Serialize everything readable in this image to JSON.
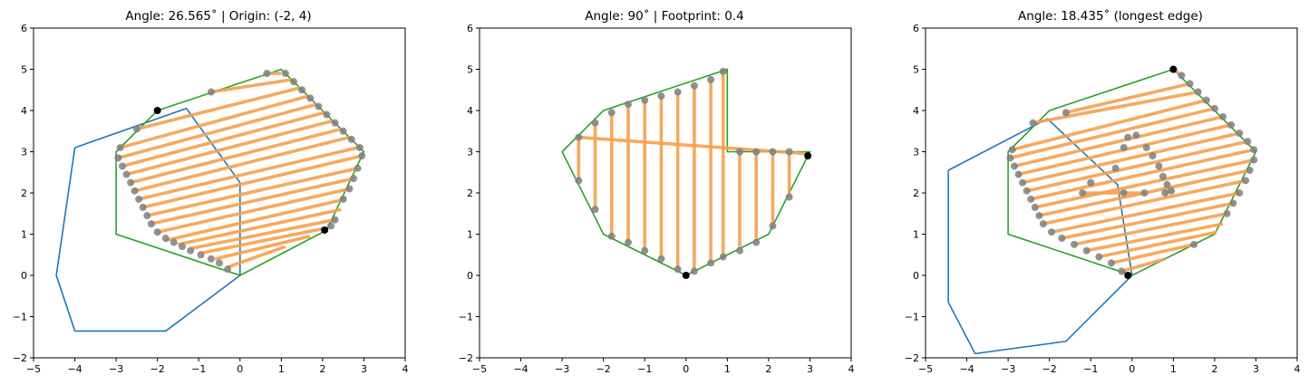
{
  "colors": {
    "polygon": "#1f77b4",
    "hull": "#2ca02c",
    "sweep": "#f5a04d",
    "waypoint": "#7f7f7f",
    "marker": "#000000"
  },
  "chart_data": [
    {
      "type": "line",
      "title": "Angle: 26.565$^\\circ$ | Origin: (-2, 4)",
      "title_text": "Angle: 26.565˚ | Origin: (-2, 4)",
      "xlim": [
        -5,
        4
      ],
      "ylim": [
        -2,
        6
      ],
      "xticks": [
        -5,
        -4,
        -3,
        -2,
        -1,
        0,
        1,
        2,
        3,
        4
      ],
      "yticks": [
        -2,
        -1,
        0,
        1,
        2,
        3,
        4,
        5,
        6
      ],
      "rotated_polygon": [
        [
          -4,
          3.1
        ],
        [
          -1.3,
          4.05
        ],
        [
          0,
          2.25
        ],
        [
          0,
          0
        ],
        [
          -1.8,
          -1.35
        ],
        [
          -4,
          -1.35
        ],
        [
          -4.45,
          0
        ],
        [
          -4,
          3.1
        ]
      ],
      "hull": [
        [
          -2,
          4
        ],
        [
          1,
          5
        ],
        [
          3,
          3
        ],
        [
          2.1,
          1.1
        ],
        [
          0,
          0
        ],
        [
          -3,
          1
        ],
        [
          -3,
          3
        ],
        [
          -2,
          4
        ]
      ],
      "sweep_lines": [
        [
          [
            0.65,
            4.9
          ],
          [
            1.0,
            4.9
          ]
        ],
        [
          [
            -0.7,
            4.45
          ],
          [
            1.25,
            4.75
          ]
        ],
        [
          [
            -2.5,
            3.55
          ],
          [
            1.45,
            4.55
          ]
        ],
        [
          [
            -2.9,
            3.1
          ],
          [
            1.65,
            4.35
          ]
        ],
        [
          [
            -2.95,
            2.85
          ],
          [
            1.85,
            4.15
          ]
        ],
        [
          [
            -2.85,
            2.65
          ],
          [
            2.05,
            3.95
          ]
        ],
        [
          [
            -2.75,
            2.45
          ],
          [
            2.25,
            3.75
          ]
        ],
        [
          [
            -2.65,
            2.25
          ],
          [
            2.45,
            3.55
          ]
        ],
        [
          [
            -2.55,
            2.05
          ],
          [
            2.65,
            3.35
          ]
        ],
        [
          [
            -2.45,
            1.85
          ],
          [
            2.85,
            3.1
          ]
        ],
        [
          [
            -2.35,
            1.65
          ],
          [
            2.95,
            2.9
          ]
        ],
        [
          [
            -2.25,
            1.45
          ],
          [
            2.85,
            2.6
          ]
        ],
        [
          [
            -2.15,
            1.25
          ],
          [
            2.75,
            2.35
          ]
        ],
        [
          [
            -2.0,
            1.05
          ],
          [
            2.65,
            2.1
          ]
        ],
        [
          [
            -1.8,
            0.85
          ],
          [
            2.55,
            1.85
          ]
        ],
        [
          [
            -1.5,
            0.75
          ],
          [
            2.45,
            1.6
          ]
        ],
        [
          [
            -1.2,
            0.65
          ],
          [
            2.3,
            1.35
          ]
        ],
        [
          [
            -0.9,
            0.55
          ],
          [
            2.1,
            1.15
          ]
        ],
        [
          [
            -0.6,
            0.4
          ],
          [
            1.7,
            0.95
          ]
        ],
        [
          [
            -0.3,
            0.2
          ],
          [
            1.1,
            0.7
          ]
        ]
      ],
      "waypoints": [
        [
          0.65,
          4.9
        ],
        [
          1.1,
          4.9
        ],
        [
          1.3,
          4.7
        ],
        [
          1.5,
          4.5
        ],
        [
          1.7,
          4.3
        ],
        [
          1.9,
          4.1
        ],
        [
          2.1,
          3.9
        ],
        [
          2.3,
          3.7
        ],
        [
          2.5,
          3.5
        ],
        [
          2.7,
          3.3
        ],
        [
          2.9,
          3.1
        ],
        [
          2.95,
          2.9
        ],
        [
          2.85,
          2.6
        ],
        [
          2.75,
          2.35
        ],
        [
          2.65,
          2.1
        ],
        [
          2.5,
          1.85
        ],
        [
          2.3,
          1.35
        ],
        [
          2.2,
          1.2
        ],
        [
          -0.7,
          4.45
        ],
        [
          -2.5,
          3.55
        ],
        [
          -2.9,
          3.1
        ],
        [
          -2.95,
          2.85
        ],
        [
          -2.85,
          2.65
        ],
        [
          -2.75,
          2.45
        ],
        [
          -2.65,
          2.25
        ],
        [
          -2.55,
          2.05
        ],
        [
          -2.45,
          1.85
        ],
        [
          -2.35,
          1.65
        ],
        [
          -2.25,
          1.45
        ],
        [
          -2.15,
          1.25
        ],
        [
          -2.0,
          1.05
        ],
        [
          -1.8,
          0.9
        ],
        [
          -1.6,
          0.8
        ],
        [
          -1.4,
          0.7
        ],
        [
          -1.2,
          0.6
        ],
        [
          -0.95,
          0.5
        ],
        [
          -0.7,
          0.4
        ],
        [
          -0.5,
          0.3
        ],
        [
          -0.3,
          0.15
        ]
      ],
      "markers": [
        [
          -2,
          4
        ],
        [
          2.05,
          1.1
        ]
      ]
    },
    {
      "type": "line",
      "title": "Angle: 90$^\\circ$ | Footprint: 0.4",
      "title_text": "Angle: 90˚ | Footprint: 0.4",
      "xlim": [
        -5,
        4
      ],
      "ylim": [
        -2,
        6
      ],
      "xticks": [
        -5,
        -4,
        -3,
        -2,
        -1,
        0,
        1,
        2,
        3,
        4
      ],
      "yticks": [
        -2,
        -1,
        0,
        1,
        2,
        3,
        4,
        5,
        6
      ],
      "hull": [
        [
          -3,
          3
        ],
        [
          -2,
          4
        ],
        [
          1,
          5
        ],
        [
          1,
          3
        ],
        [
          3,
          3
        ],
        [
          2,
          1
        ],
        [
          0,
          0
        ],
        [
          -2,
          1
        ],
        [
          -3,
          3
        ]
      ],
      "sweep_lines": [
        [
          [
            -2.6,
            3.35
          ],
          [
            -2.6,
            2.3
          ]
        ],
        [
          [
            -2.6,
            3.35
          ],
          [
            2.95,
            2.95
          ]
        ],
        [
          [
            -2.2,
            3.7
          ],
          [
            -2.2,
            1.6
          ]
        ],
        [
          [
            -1.8,
            3.95
          ],
          [
            -1.8,
            0.95
          ]
        ],
        [
          [
            -1.4,
            4.15
          ],
          [
            -1.4,
            0.8
          ]
        ],
        [
          [
            -1.0,
            4.25
          ],
          [
            -1.0,
            0.6
          ]
        ],
        [
          [
            -0.6,
            4.35
          ],
          [
            -0.6,
            0.4
          ]
        ],
        [
          [
            -0.2,
            4.45
          ],
          [
            -0.2,
            0.15
          ]
        ],
        [
          [
            0.2,
            4.6
          ],
          [
            0.2,
            0.1
          ]
        ],
        [
          [
            0.6,
            4.75
          ],
          [
            0.6,
            0.3
          ]
        ],
        [
          [
            0.9,
            4.95
          ],
          [
            0.9,
            0.45
          ]
        ],
        [
          [
            1.3,
            3.0
          ],
          [
            1.3,
            0.6
          ]
        ],
        [
          [
            1.7,
            3.0
          ],
          [
            1.7,
            0.8
          ]
        ],
        [
          [
            2.1,
            3.0
          ],
          [
            2.1,
            1.2
          ]
        ],
        [
          [
            2.5,
            3.0
          ],
          [
            2.5,
            1.9
          ]
        ],
        [
          [
            2.95,
            2.95
          ],
          [
            2.95,
            2.9
          ]
        ]
      ],
      "waypoints": [
        [
          -2.6,
          3.35
        ],
        [
          -2.6,
          2.3
        ],
        [
          -2.2,
          3.7
        ],
        [
          -2.2,
          1.6
        ],
        [
          -1.8,
          3.95
        ],
        [
          -1.8,
          0.95
        ],
        [
          -1.4,
          4.15
        ],
        [
          -1.4,
          0.8
        ],
        [
          -1.0,
          4.25
        ],
        [
          -1.0,
          0.6
        ],
        [
          -0.6,
          4.35
        ],
        [
          -0.6,
          0.4
        ],
        [
          -0.2,
          4.45
        ],
        [
          -0.2,
          0.15
        ],
        [
          0.2,
          4.6
        ],
        [
          0.2,
          0.1
        ],
        [
          0.6,
          4.75
        ],
        [
          0.6,
          0.3
        ],
        [
          0.9,
          4.95
        ],
        [
          0.9,
          0.45
        ],
        [
          1.3,
          3.0
        ],
        [
          1.3,
          0.6
        ],
        [
          1.7,
          3.0
        ],
        [
          1.7,
          0.8
        ],
        [
          2.1,
          3.0
        ],
        [
          2.1,
          1.2
        ],
        [
          2.5,
          3.0
        ],
        [
          2.5,
          1.9
        ]
      ],
      "markers": [
        [
          0,
          0
        ],
        [
          2.95,
          2.9
        ]
      ]
    },
    {
      "type": "line",
      "title": "Angle: 18.435$^\\circ$ (longest edge)",
      "title_text": "Angle: 18.435˚ (longest edge)",
      "xlim": [
        -5,
        4
      ],
      "ylim": [
        -2,
        6
      ],
      "xticks": [
        -5,
        -4,
        -3,
        -2,
        -1,
        0,
        1,
        2,
        3,
        4
      ],
      "yticks": [
        -2,
        -1,
        0,
        1,
        2,
        3,
        4,
        5,
        6
      ],
      "rotated_polygon": [
        [
          -4.45,
          2.55
        ],
        [
          -2.05,
          3.8
        ],
        [
          -0.35,
          2.2
        ],
        [
          0,
          0
        ],
        [
          -1.6,
          -1.6
        ],
        [
          -3.8,
          -1.9
        ],
        [
          -4.45,
          -0.65
        ],
        [
          -4.45,
          2.55
        ]
      ],
      "hull": [
        [
          -2,
          4
        ],
        [
          1,
          5
        ],
        [
          3,
          3
        ],
        [
          2,
          1
        ],
        [
          0,
          0
        ],
        [
          -3,
          1
        ],
        [
          -3,
          3
        ],
        [
          -2,
          4
        ]
      ],
      "sweep_lines": [
        [
          [
            1.0,
            5.0
          ],
          [
            1.2,
            4.85
          ]
        ],
        [
          [
            -1.6,
            3.95
          ],
          [
            1.4,
            4.65
          ]
        ],
        [
          [
            -2.4,
            3.7
          ],
          [
            1.6,
            4.45
          ]
        ],
        [
          [
            -2.9,
            3.05
          ],
          [
            1.8,
            4.25
          ]
        ],
        [
          [
            -2.95,
            2.85
          ],
          [
            2.0,
            4.05
          ]
        ],
        [
          [
            -2.85,
            2.65
          ],
          [
            2.2,
            3.85
          ]
        ],
        [
          [
            -2.75,
            2.45
          ],
          [
            2.4,
            3.65
          ]
        ],
        [
          [
            -2.65,
            2.25
          ],
          [
            2.6,
            3.45
          ]
        ],
        [
          [
            -2.55,
            2.05
          ],
          [
            2.8,
            3.25
          ]
        ],
        [
          [
            -2.45,
            1.85
          ],
          [
            2.95,
            3.05
          ]
        ],
        [
          [
            -2.35,
            1.65
          ],
          [
            2.95,
            2.8
          ]
        ],
        [
          [
            -2.25,
            1.45
          ],
          [
            2.85,
            2.55
          ]
        ],
        [
          [
            -2.15,
            1.25
          ],
          [
            2.75,
            2.3
          ]
        ],
        [
          [
            -1.95,
            1.05
          ],
          [
            2.6,
            2.0
          ]
        ],
        [
          [
            -1.7,
            0.9
          ],
          [
            2.45,
            1.75
          ]
        ],
        [
          [
            -1.4,
            0.75
          ],
          [
            2.3,
            1.5
          ]
        ],
        [
          [
            -1.1,
            0.6
          ],
          [
            2.2,
            1.25
          ]
        ],
        [
          [
            -0.8,
            0.45
          ],
          [
            2.05,
            1.05
          ]
        ],
        [
          [
            -0.5,
            0.3
          ],
          [
            1.5,
            0.75
          ]
        ],
        [
          [
            -0.25,
            0.1
          ],
          [
            0.8,
            0.4
          ]
        ],
        [
          [
            -1.2,
            2.0
          ],
          [
            0.3,
            2.0
          ]
        ],
        [
          [
            0.8,
            2.0
          ],
          [
            1.0,
            2.05
          ]
        ]
      ],
      "waypoints": [
        [
          1.2,
          4.85
        ],
        [
          1.4,
          4.65
        ],
        [
          1.6,
          4.45
        ],
        [
          1.8,
          4.25
        ],
        [
          2.0,
          4.05
        ],
        [
          2.2,
          3.85
        ],
        [
          2.4,
          3.65
        ],
        [
          2.6,
          3.45
        ],
        [
          2.8,
          3.25
        ],
        [
          2.95,
          3.05
        ],
        [
          2.95,
          2.8
        ],
        [
          2.85,
          2.55
        ],
        [
          2.75,
          2.3
        ],
        [
          2.6,
          2.0
        ],
        [
          2.45,
          1.75
        ],
        [
          2.3,
          1.5
        ],
        [
          1.5,
          0.75
        ],
        [
          -1.6,
          3.95
        ],
        [
          -2.4,
          3.7
        ],
        [
          -2.9,
          3.05
        ],
        [
          -2.95,
          2.85
        ],
        [
          -2.85,
          2.65
        ],
        [
          -2.75,
          2.45
        ],
        [
          -2.65,
          2.25
        ],
        [
          -2.55,
          2.05
        ],
        [
          -2.45,
          1.85
        ],
        [
          -2.35,
          1.65
        ],
        [
          -2.25,
          1.45
        ],
        [
          -2.15,
          1.25
        ],
        [
          -1.95,
          1.05
        ],
        [
          -1.7,
          0.9
        ],
        [
          -1.4,
          0.75
        ],
        [
          -1.1,
          0.6
        ],
        [
          -0.8,
          0.45
        ],
        [
          -0.5,
          0.3
        ],
        [
          -0.25,
          0.1
        ],
        [
          -0.4,
          2.6
        ],
        [
          -0.2,
          3.1
        ],
        [
          -0.1,
          3.35
        ],
        [
          0.1,
          3.4
        ],
        [
          0.35,
          3.1
        ],
        [
          0.5,
          2.9
        ],
        [
          0.65,
          2.65
        ],
        [
          0.75,
          2.4
        ],
        [
          0.85,
          2.2
        ],
        [
          0.95,
          2.05
        ],
        [
          -1.2,
          2.0
        ],
        [
          -1.0,
          2.25
        ],
        [
          -0.2,
          2.0
        ],
        [
          0.3,
          2.0
        ],
        [
          0.8,
          2.0
        ]
      ],
      "markers": [
        [
          1,
          5
        ],
        [
          -0.1,
          0
        ]
      ]
    }
  ]
}
